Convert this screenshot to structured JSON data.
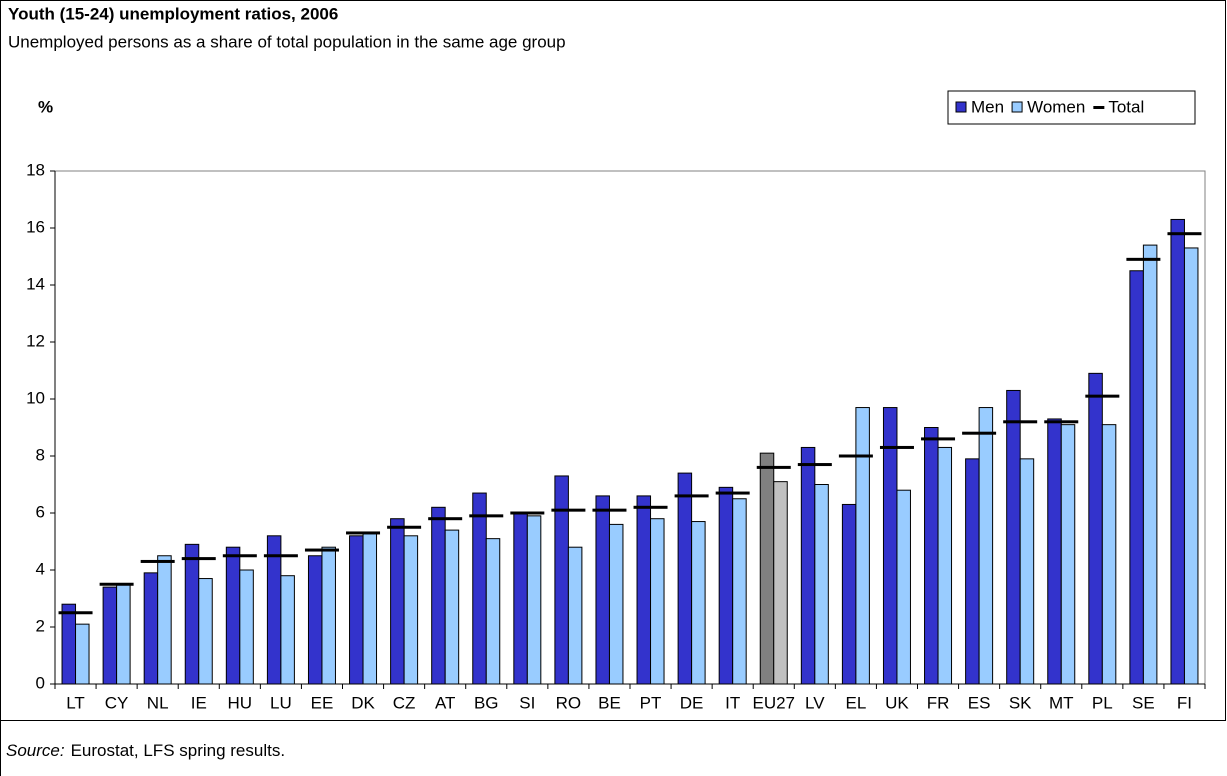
{
  "chart_data": {
    "type": "bar",
    "title": "Youth (15-24) unemployment ratios, 2006",
    "subtitle": "Unemployed persons as a share of total population in the same age group",
    "y_label": "%",
    "source": {
      "label": "Source:",
      "text": "Eurostat, LFS spring results."
    },
    "categories": [
      "LT",
      "CY",
      "NL",
      "IE",
      "HU",
      "LU",
      "EE",
      "DK",
      "CZ",
      "AT",
      "BG",
      "SI",
      "RO",
      "BE",
      "PT",
      "DE",
      "IT",
      "EU27",
      "LV",
      "EL",
      "UK",
      "FR",
      "ES",
      "SK",
      "MT",
      "PL",
      "SE",
      "FI"
    ],
    "highlight": "EU27",
    "series": [
      {
        "name": "Men",
        "color": "#3333cc",
        "highlight_color": "#808080",
        "values": [
          2.8,
          3.4,
          3.9,
          4.9,
          4.8,
          5.2,
          4.5,
          5.2,
          5.8,
          6.2,
          6.7,
          6.0,
          7.3,
          6.6,
          6.6,
          7.4,
          6.9,
          8.1,
          8.3,
          6.3,
          9.7,
          9.0,
          7.9,
          10.3,
          9.3,
          10.9,
          14.5,
          16.3
        ]
      },
      {
        "name": "Women",
        "color": "#99ccff",
        "highlight_color": "#c0c0c0",
        "values": [
          2.1,
          3.5,
          4.5,
          3.7,
          4.0,
          3.8,
          4.8,
          5.3,
          5.2,
          5.4,
          5.1,
          5.9,
          4.8,
          5.6,
          5.8,
          5.7,
          6.5,
          7.1,
          7.0,
          9.7,
          6.8,
          8.3,
          9.7,
          7.9,
          9.1,
          9.1,
          15.4,
          15.3
        ]
      },
      {
        "name": "Total",
        "type": "marker",
        "color": "#000000",
        "values": [
          2.5,
          3.5,
          4.3,
          4.4,
          4.5,
          4.5,
          4.7,
          5.3,
          5.5,
          5.8,
          5.9,
          6.0,
          6.1,
          6.1,
          6.2,
          6.6,
          6.7,
          7.6,
          7.7,
          8.0,
          8.3,
          8.6,
          8.8,
          9.2,
          9.2,
          10.1,
          14.9,
          15.8
        ]
      }
    ],
    "ylim": [
      0,
      18
    ],
    "yticks": [
      0,
      2,
      4,
      6,
      8,
      10,
      12,
      14,
      16,
      18
    ],
    "grid": false,
    "legend": "top-right"
  }
}
